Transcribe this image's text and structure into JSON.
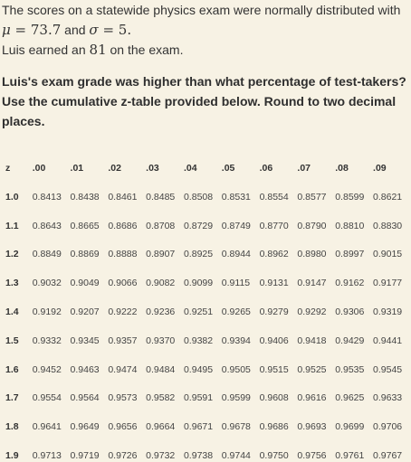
{
  "intro": {
    "line1": "The scores on a statewide physics exam were normally distributed with",
    "mu_symbol": "μ",
    "mu_value": "= 73.7",
    "and_text": "and",
    "sigma_symbol": "σ",
    "sigma_value": "= 5.",
    "line3_prefix": "Luis earned an",
    "score": "81",
    "line3_suffix": "on the exam."
  },
  "question": "Luis's exam grade was higher than what percentage of test-takers? Use the cumulative z-table provided below. Round to two decimal places.",
  "ztable": {
    "z_header": "z",
    "columns": [
      ".00",
      ".01",
      ".02",
      ".03",
      ".04",
      ".05",
      ".06",
      ".07",
      ".08",
      ".09"
    ],
    "rows": [
      {
        "z": "1.0",
        "values": [
          "0.8413",
          "0.8438",
          "0.8461",
          "0.8485",
          "0.8508",
          "0.8531",
          "0.8554",
          "0.8577",
          "0.8599",
          "0.8621"
        ]
      },
      {
        "z": "1.1",
        "values": [
          "0.8643",
          "0.8665",
          "0.8686",
          "0.8708",
          "0.8729",
          "0.8749",
          "0.8770",
          "0.8790",
          "0.8810",
          "0.8830"
        ]
      },
      {
        "z": "1.2",
        "values": [
          "0.8849",
          "0.8869",
          "0.8888",
          "0.8907",
          "0.8925",
          "0.8944",
          "0.8962",
          "0.8980",
          "0.8997",
          "0.9015"
        ]
      },
      {
        "z": "1.3",
        "values": [
          "0.9032",
          "0.9049",
          "0.9066",
          "0.9082",
          "0.9099",
          "0.9115",
          "0.9131",
          "0.9147",
          "0.9162",
          "0.9177"
        ]
      },
      {
        "z": "1.4",
        "values": [
          "0.9192",
          "0.9207",
          "0.9222",
          "0.9236",
          "0.9251",
          "0.9265",
          "0.9279",
          "0.9292",
          "0.9306",
          "0.9319"
        ]
      },
      {
        "z": "1.5",
        "values": [
          "0.9332",
          "0.9345",
          "0.9357",
          "0.9370",
          "0.9382",
          "0.9394",
          "0.9406",
          "0.9418",
          "0.9429",
          "0.9441"
        ]
      },
      {
        "z": "1.6",
        "values": [
          "0.9452",
          "0.9463",
          "0.9474",
          "0.9484",
          "0.9495",
          "0.9505",
          "0.9515",
          "0.9525",
          "0.9535",
          "0.9545"
        ]
      },
      {
        "z": "1.7",
        "values": [
          "0.9554",
          "0.9564",
          "0.9573",
          "0.9582",
          "0.9591",
          "0.9599",
          "0.9608",
          "0.9616",
          "0.9625",
          "0.9633"
        ]
      },
      {
        "z": "1.8",
        "values": [
          "0.9641",
          "0.9649",
          "0.9656",
          "0.9664",
          "0.9671",
          "0.9678",
          "0.9686",
          "0.9693",
          "0.9699",
          "0.9706"
        ]
      },
      {
        "z": "1.9",
        "values": [
          "0.9713",
          "0.9719",
          "0.9726",
          "0.9732",
          "0.9738",
          "0.9744",
          "0.9750",
          "0.9756",
          "0.9761",
          "0.9767"
        ]
      }
    ]
  },
  "colors": {
    "background": "#f7f2e4",
    "text": "#333333"
  }
}
